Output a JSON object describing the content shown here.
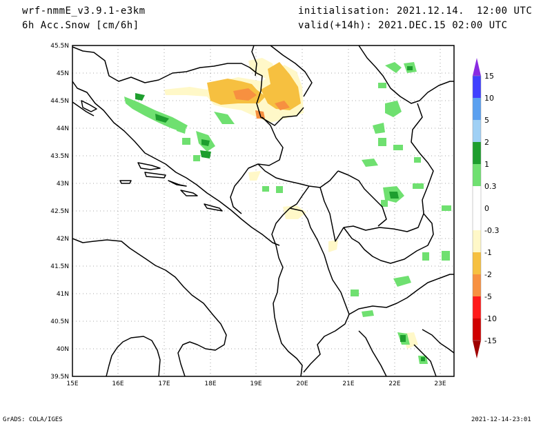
{
  "header": {
    "model": "wrf-nmmE_v3.9.1-e3km",
    "variable": "6h Acc.Snow [cm/6h]",
    "init": "initialisation: 2021.12.14.  12:00 UTC",
    "valid": "valid(+14h): 2021.DEC.15 02:00 UTC"
  },
  "footer": {
    "left": "GrADS: COLA/IGES",
    "right": "2021-12-14-23:01"
  },
  "map": {
    "lat_labels": [
      "45.5N",
      "45N",
      "44.5N",
      "44N",
      "43.5N",
      "43N",
      "42.5N",
      "42N",
      "41.5N",
      "41N",
      "40.5N",
      "40N",
      "39.5N"
    ],
    "lon_labels": [
      "15E",
      "16E",
      "17E",
      "18E",
      "19E",
      "20E",
      "21E",
      "22E",
      "23E"
    ]
  },
  "colorbar": {
    "levels": [
      "15",
      "10",
      "5",
      "2",
      "1",
      "0.3",
      "0",
      "-0.3",
      "-1",
      "-2",
      "-5",
      "-10",
      "-15"
    ],
    "colors": [
      "#8a2be2",
      "#4040ff",
      "#5aa0f0",
      "#9fd0f5",
      "#1e9e2e",
      "#6fe070",
      "#ffffff",
      "#ffffff",
      "#fff8c8",
      "#f6c040",
      "#f79040",
      "#ff1a1a",
      "#d00000",
      "#a00000"
    ]
  }
}
